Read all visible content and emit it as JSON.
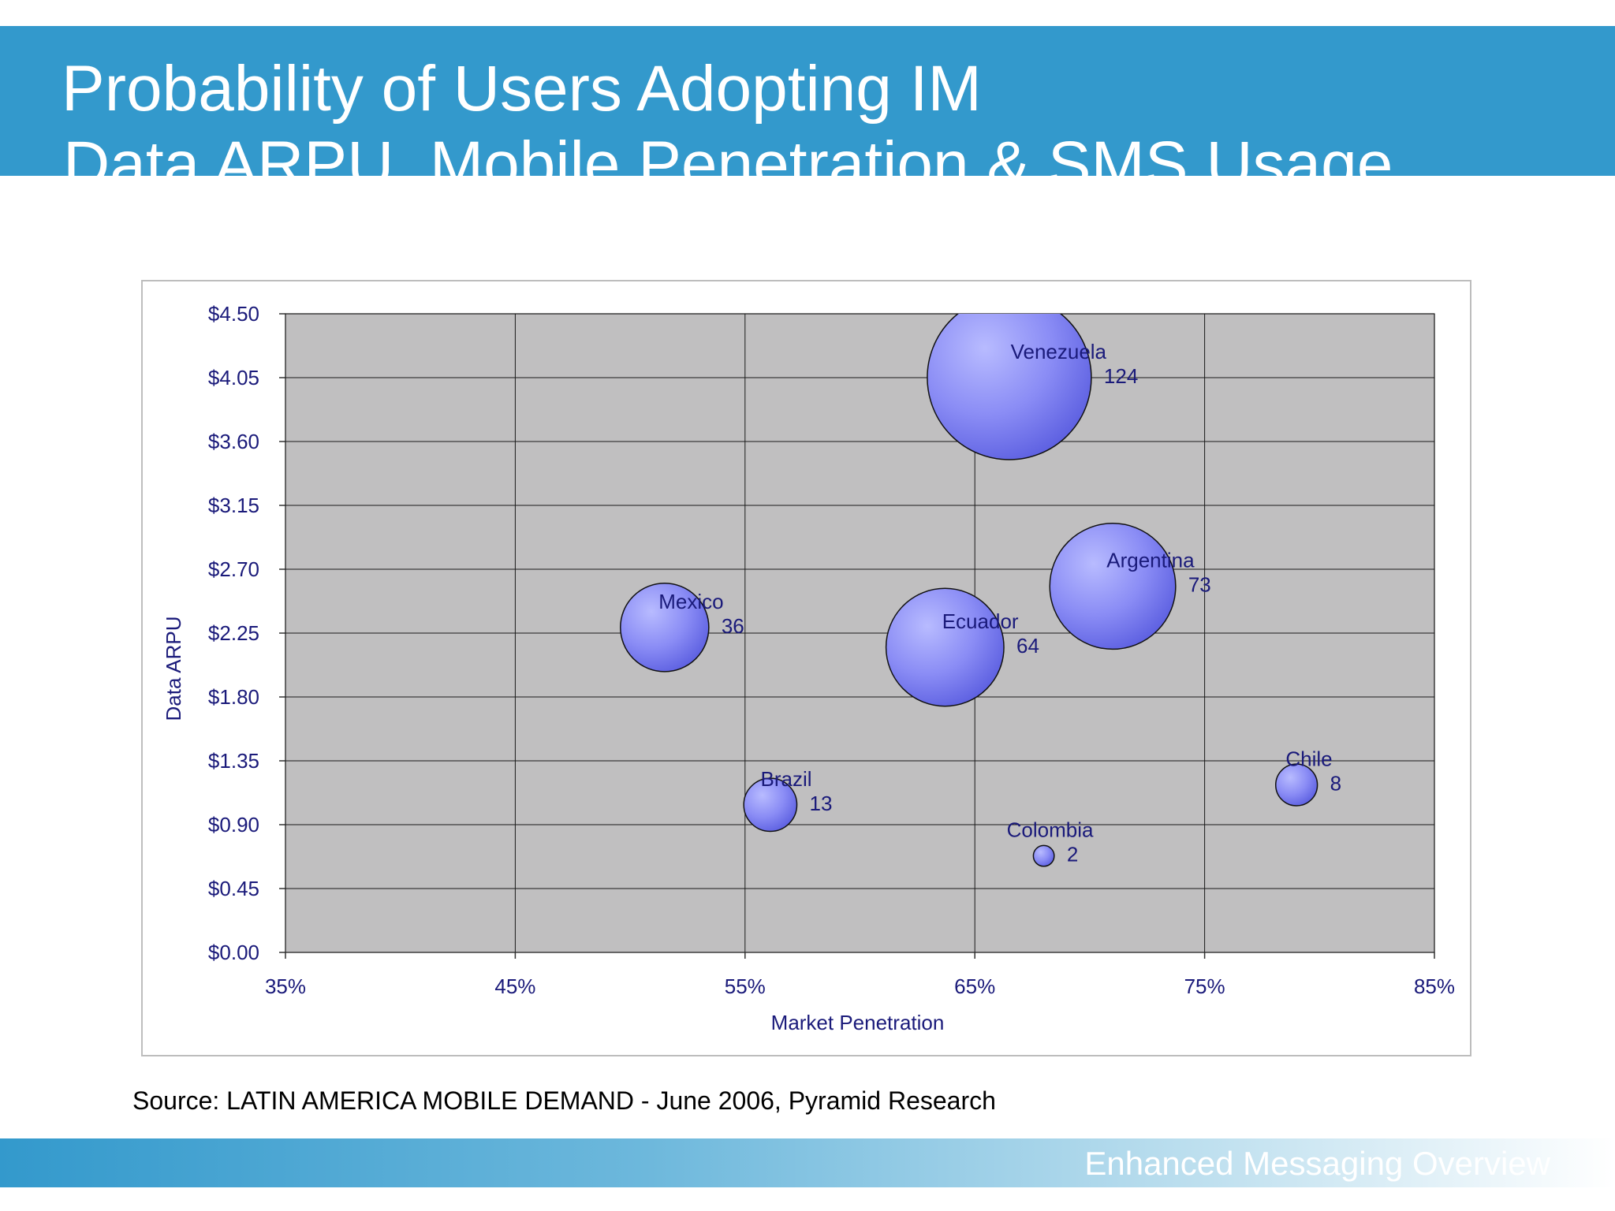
{
  "slide": {
    "title_line1": "Probability of Users Adopting IM",
    "title_line2": "Data ARPU, Mobile Penetration & SMS Usage",
    "source": "Source: LATIN AMERICA MOBILE DEMAND - June 2006, Pyramid Research",
    "footer": "Enhanced Messaging Overview"
  },
  "colors": {
    "banner": "#3399cc",
    "plot_background": "#c0bfc0",
    "bubble_fill": "#8a8cf5",
    "text": "#1a1a7a"
  },
  "chart_data": {
    "type": "bubble",
    "xlabel": "Market Penetration",
    "ylabel": "Data ARPU",
    "xlim": [
      0.35,
      0.85
    ],
    "ylim": [
      0,
      4.5
    ],
    "x_ticks": [
      "35%",
      "45%",
      "55%",
      "65%",
      "75%",
      "85%"
    ],
    "y_ticks": [
      "$0.00",
      "$0.45",
      "$0.90",
      "$1.35",
      "$1.80",
      "$2.25",
      "$2.70",
      "$3.15",
      "$3.60",
      "$4.05",
      "$4.50"
    ],
    "grid": true,
    "points": [
      {
        "label": "Venezuela",
        "x": 0.665,
        "y": 4.05,
        "size": 124
      },
      {
        "label": "Argentina",
        "x": 0.71,
        "y": 2.58,
        "size": 73
      },
      {
        "label": "Mexico",
        "x": 0.515,
        "y": 2.29,
        "size": 36
      },
      {
        "label": "Ecuador",
        "x": 0.637,
        "y": 2.15,
        "size": 64
      },
      {
        "label": "Chile",
        "x": 0.79,
        "y": 1.18,
        "size": 8
      },
      {
        "label": "Brazil",
        "x": 0.561,
        "y": 1.04,
        "size": 13
      },
      {
        "label": "Colombia",
        "x": 0.68,
        "y": 0.68,
        "size": 2
      }
    ]
  }
}
